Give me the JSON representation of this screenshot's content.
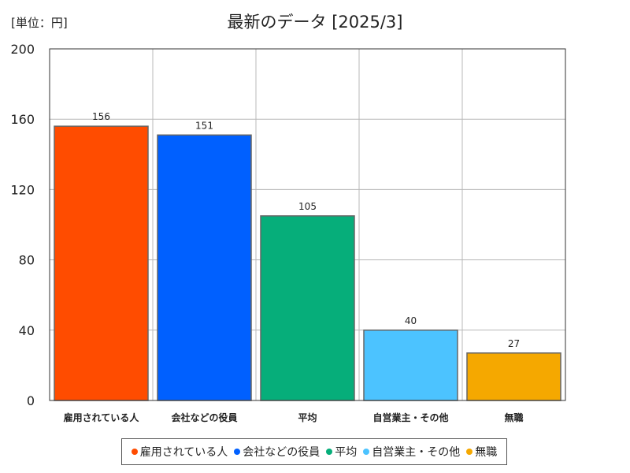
{
  "header": {
    "unit_label": "[単位：円]",
    "title": "最新のデータ [2025/3]"
  },
  "chart_data": {
    "type": "bar",
    "categories": [
      "雇用されている人",
      "会社などの役員",
      "平均",
      "自営業主・その他",
      "無職"
    ],
    "values": [
      156,
      151,
      105,
      40,
      27
    ],
    "colors": [
      "#ff4c00",
      "#0060ff",
      "#06ae7a",
      "#4cc3ff",
      "#f5a800"
    ],
    "ylim": [
      0,
      200
    ],
    "yticks": [
      0,
      40,
      80,
      120,
      160,
      200
    ],
    "grid": true,
    "legend_position": "bottom"
  }
}
